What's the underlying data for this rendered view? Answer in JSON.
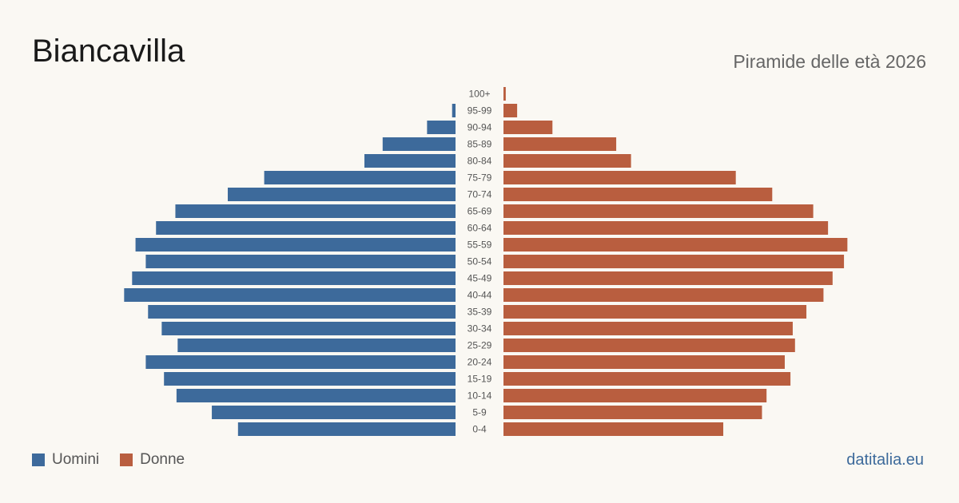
{
  "header": {
    "title": "Biancavilla",
    "subtitle": "Piramide delle età 2026"
  },
  "colors": {
    "men": "#3d6a9b",
    "women": "#b95e3f",
    "background": "#faf8f3",
    "tick_label": "#555555"
  },
  "legend": {
    "men_label": "Uomini",
    "women_label": "Donne"
  },
  "footer": {
    "source": "datitalia.eu"
  },
  "chart_data": {
    "type": "bar",
    "orientation": "horizontal-pyramid",
    "categories": [
      "100+",
      "95-99",
      "90-94",
      "85-89",
      "80-84",
      "75-79",
      "70-74",
      "65-69",
      "60-64",
      "55-59",
      "50-54",
      "45-49",
      "40-44",
      "35-39",
      "30-34",
      "25-29",
      "20-24",
      "15-19",
      "10-14",
      "5-9",
      "0-4"
    ],
    "series": [
      {
        "name": "Uomini",
        "values": [
          0,
          3,
          25,
          64,
          80,
          168,
          200,
          246,
          263,
          281,
          272,
          284,
          291,
          270,
          258,
          244,
          272,
          256,
          245,
          214,
          191
        ]
      },
      {
        "name": "Donne",
        "values": [
          2,
          12,
          43,
          99,
          112,
          204,
          236,
          272,
          285,
          302,
          299,
          289,
          281,
          266,
          254,
          256,
          247,
          252,
          231,
          227,
          193
        ]
      }
    ],
    "grid": false,
    "legend_position": "bottom-left"
  }
}
